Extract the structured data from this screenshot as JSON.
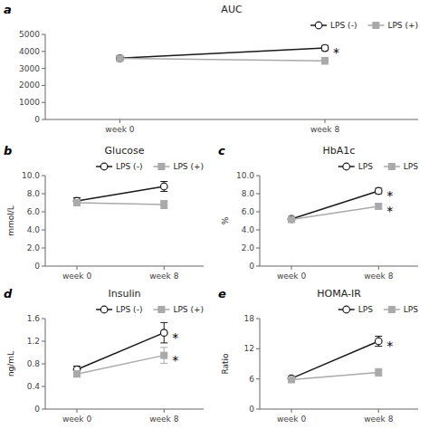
{
  "chart_data": [
    {
      "type": "line",
      "panel_label": "a",
      "title": "AUC",
      "categories": [
        "week 0",
        "week 8"
      ],
      "ylim": [
        0,
        5000
      ],
      "yticks": [
        0,
        1000,
        2000,
        3000,
        4000,
        5000
      ],
      "grid": false,
      "legend": "upper right",
      "series": [
        {
          "name": "LPS (-)",
          "color": "#1a1a1a",
          "marker": "circle",
          "values": [
            3600,
            4200
          ],
          "errors": [
            120,
            150
          ]
        },
        {
          "name": "LPS (+)",
          "color": "#aaaaaa",
          "marker": "square",
          "values": [
            3590,
            3450
          ],
          "errors": [
            100,
            200
          ]
        }
      ],
      "annotations": [
        {
          "text": "*",
          "x": "week 8",
          "y": 4200
        }
      ]
    },
    {
      "type": "line",
      "panel_label": "b",
      "title": "Glucose",
      "ylabel": "mmol/L",
      "categories": [
        "week 0",
        "week 8"
      ],
      "ylim": [
        0,
        10
      ],
      "yticks": [
        0,
        {
          "value": 2,
          "label": "2.0"
        },
        {
          "value": 4,
          "label": "4.0"
        },
        {
          "value": 6,
          "label": "6.0"
        },
        {
          "value": 8,
          "label": "8.0"
        },
        {
          "value": 10,
          "label": "10.0"
        }
      ],
      "grid": false,
      "legend": "upper right",
      "series": [
        {
          "name": "LPS (-)",
          "color": "#1a1a1a",
          "marker": "circle",
          "values": [
            7.2,
            8.8
          ],
          "errors": [
            0.35,
            0.55
          ]
        },
        {
          "name": "LPS (+)",
          "color": "#aaaaaa",
          "marker": "square",
          "values": [
            7.0,
            6.8
          ],
          "errors": [
            0.25,
            0.45
          ]
        }
      ]
    },
    {
      "type": "line",
      "panel_label": "c",
      "title": "HbA1c",
      "ylabel": "%",
      "categories": [
        "week 0",
        "week 8"
      ],
      "ylim": [
        0,
        10
      ],
      "yticks": [
        0,
        {
          "value": 2,
          "label": "2.0"
        },
        {
          "value": 4,
          "label": "4.0"
        },
        {
          "value": 6,
          "label": "6.0"
        },
        {
          "value": 8,
          "label": "8.0"
        },
        {
          "value": 10,
          "label": "10.0"
        }
      ],
      "grid": false,
      "legend": "upper right",
      "series": [
        {
          "name": "LPS",
          "color": "#1a1a1a",
          "marker": "circle",
          "values": [
            5.2,
            8.3
          ],
          "errors": [
            0.12,
            0.3
          ]
        },
        {
          "name": "LPS",
          "color": "#aaaaaa",
          "marker": "square",
          "values": [
            5.15,
            6.6
          ],
          "errors": [
            0.12,
            0.28
          ]
        }
      ],
      "annotations": [
        {
          "text": "*",
          "x": "week 8",
          "y": 8.3
        },
        {
          "text": "*",
          "x": "week 8",
          "y": 6.6
        }
      ]
    },
    {
      "type": "line",
      "panel_label": "d",
      "title": "Insulin",
      "ylabel": "ng/mL",
      "categories": [
        "week 0",
        "week 8"
      ],
      "ylim": [
        0,
        1.6
      ],
      "yticks": [
        0,
        0.4,
        0.8,
        1.2,
        1.6
      ],
      "grid": false,
      "legend": "upper right",
      "series": [
        {
          "name": "LPS (-)",
          "color": "#1a1a1a",
          "marker": "circle",
          "values": [
            0.7,
            1.35
          ],
          "errors": [
            0.06,
            0.18
          ]
        },
        {
          "name": "LPS (+)",
          "color": "#aaaaaa",
          "marker": "square",
          "values": [
            0.62,
            0.95
          ],
          "errors": [
            0.05,
            0.14
          ]
        }
      ],
      "annotations": [
        {
          "text": "*",
          "x": "week 8",
          "y": 1.35
        },
        {
          "text": "*",
          "x": "week 8",
          "y": 0.95
        }
      ]
    },
    {
      "type": "line",
      "panel_label": "e",
      "title": "HOMA-IR",
      "ylabel": "Ratio",
      "categories": [
        "week 0",
        "week 8"
      ],
      "ylim": [
        0,
        18
      ],
      "yticks": [
        0,
        6,
        12,
        18
      ],
      "grid": false,
      "legend": "upper right",
      "series": [
        {
          "name": "LPS",
          "color": "#1a1a1a",
          "marker": "circle",
          "values": [
            6.1,
            13.5
          ],
          "errors": [
            0.45,
            1.0
          ]
        },
        {
          "name": "LPS",
          "color": "#aaaaaa",
          "marker": "square",
          "values": [
            5.85,
            7.3
          ],
          "errors": [
            0.4,
            0.75
          ]
        }
      ],
      "annotations": [
        {
          "text": "*",
          "x": "week 8",
          "y": 13.5
        }
      ]
    }
  ]
}
